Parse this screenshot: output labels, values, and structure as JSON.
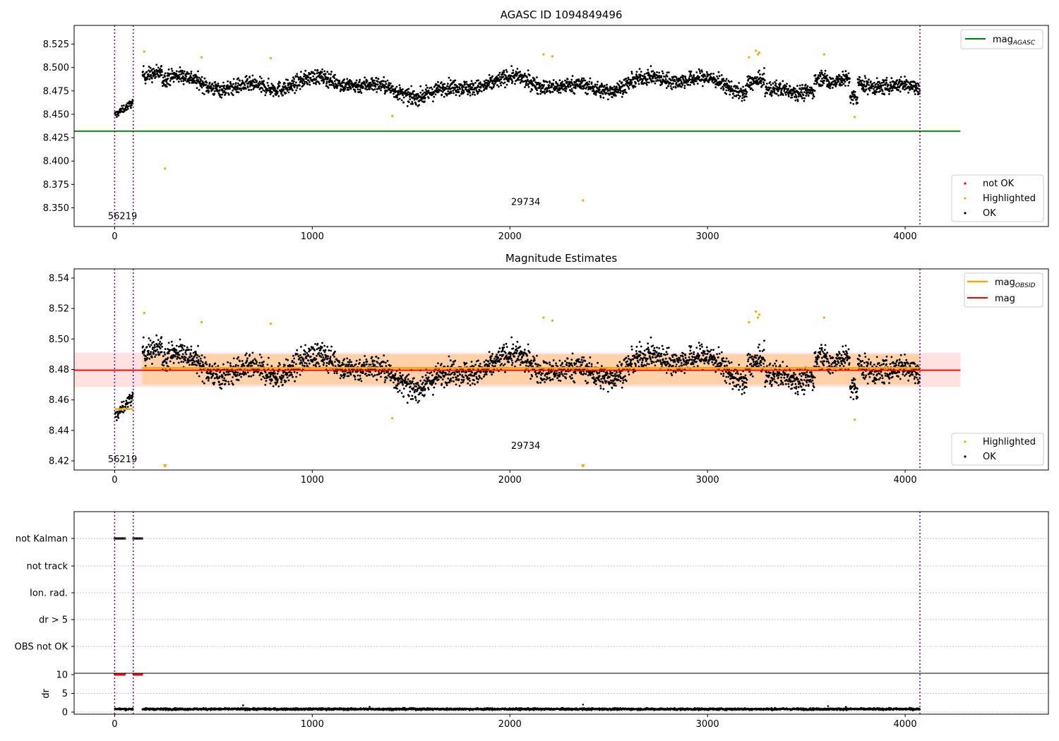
{
  "chart_data": [
    {
      "type": "scatter",
      "title": "AGASC ID 1094849496",
      "xlim": [
        -205,
        4725
      ],
      "ylim": [
        8.33,
        8.545
      ],
      "xticks": [
        0,
        1000,
        2000,
        3000,
        4000
      ],
      "yticks": [
        8.35,
        8.375,
        8.4,
        8.425,
        8.45,
        8.475,
        8.5,
        8.525
      ],
      "ytick_labels": [
        "8.350",
        "8.375",
        "8.400",
        "8.425",
        "8.450",
        "8.475",
        "8.500",
        "8.525"
      ],
      "vlines": [
        0,
        94,
        4075
      ],
      "hline": {
        "name": "mag_AGASC",
        "label_main": "mag",
        "label_sub": "AGASC",
        "y": 8.432,
        "x0": -205,
        "x1": 4280,
        "color": "#008000"
      },
      "annotations": [
        {
          "text": "56219",
          "x": 40,
          "y": 8.338
        },
        {
          "text": "29734",
          "x": 2080,
          "y": 8.353
        }
      ],
      "segment_trends": [
        {
          "x0": 0,
          "x1": 94,
          "level": 8.452,
          "noise": 0.004
        },
        {
          "x0": 140,
          "x1": 4075,
          "level": 8.481,
          "noise": 0.008
        }
      ],
      "highlighted": [
        [
          150,
          8.517
        ],
        [
          255,
          8.392
        ],
        [
          440,
          8.511
        ],
        [
          790,
          8.51
        ],
        [
          1405,
          8.448
        ],
        [
          2170,
          8.514
        ],
        [
          2215,
          8.512
        ],
        [
          2370,
          8.358
        ],
        [
          3210,
          8.511
        ],
        [
          3245,
          8.518
        ],
        [
          3255,
          8.514
        ],
        [
          3262,
          8.516
        ],
        [
          3590,
          8.514
        ],
        [
          3745,
          8.447
        ]
      ],
      "legend": [
        {
          "label": "not OK",
          "color": "#ff0000"
        },
        {
          "label": "Highlighted",
          "color": "#ffa500"
        },
        {
          "label": "OK",
          "color": "#000000"
        }
      ]
    },
    {
      "type": "scatter",
      "title": "Magnitude Estimates",
      "xlim": [
        -205,
        4725
      ],
      "ylim": [
        8.414,
        8.546
      ],
      "xticks": [
        0,
        1000,
        2000,
        3000,
        4000
      ],
      "yticks": [
        8.42,
        8.44,
        8.46,
        8.48,
        8.5,
        8.52,
        8.54
      ],
      "ytick_labels": [
        "8.42",
        "8.44",
        "8.46",
        "8.48",
        "8.50",
        "8.52",
        "8.54"
      ],
      "vlines": [
        0,
        94,
        4075
      ],
      "mag": {
        "label": "mag",
        "y": 8.4795,
        "band": [
          8.4685,
          8.491
        ],
        "x0": -205,
        "x1": 4280,
        "color": "#ff0000"
      },
      "mag_obsid": [
        {
          "x0": 0,
          "x1": 94,
          "y": 8.454
        },
        {
          "x0": 140,
          "x1": 4075,
          "y": 8.481,
          "band": [
            8.47,
            8.49
          ]
        }
      ],
      "mag_obsid_label_main": "mag",
      "mag_obsid_label_sub": "OBSID",
      "annotations": [
        {
          "text": "56219",
          "x": 40,
          "y": 8.419
        },
        {
          "text": "29734",
          "x": 2080,
          "y": 8.428
        }
      ],
      "off_scale_markers": [
        255,
        2370
      ],
      "legend": [
        {
          "label": "Highlighted",
          "color": "#ffa500"
        },
        {
          "label": "OK",
          "color": "#000000"
        }
      ]
    },
    {
      "type": "scatter",
      "title": "",
      "xlim": [
        -205,
        4725
      ],
      "xticks": [
        0,
        1000,
        2000,
        3000,
        4000
      ],
      "vlines": [
        0,
        94,
        4075
      ],
      "flag_rows": [
        "not Kalman",
        "not track",
        "Ion. rad.",
        "dr > 5",
        "OBS not OK"
      ],
      "flagged_intervals": [
        {
          "row": "not Kalman",
          "x0": 0,
          "x1": 55
        },
        {
          "row": "not Kalman",
          "x0": 95,
          "x1": 140
        }
      ],
      "dr": {
        "ylabel": "dr",
        "ylim": [
          -0.5,
          10.3
        ],
        "yticks": [
          0,
          5,
          10
        ],
        "threshold": 10,
        "clipped_intervals": [
          [
            0,
            55
          ],
          [
            95,
            140
          ]
        ],
        "typical": 0.8,
        "spikes": [
          [
            650,
            1.8
          ],
          [
            1290,
            1.4
          ],
          [
            2370,
            2.0
          ],
          [
            3610,
            1.6
          ],
          [
            3700,
            1.4
          ]
        ]
      }
    }
  ]
}
